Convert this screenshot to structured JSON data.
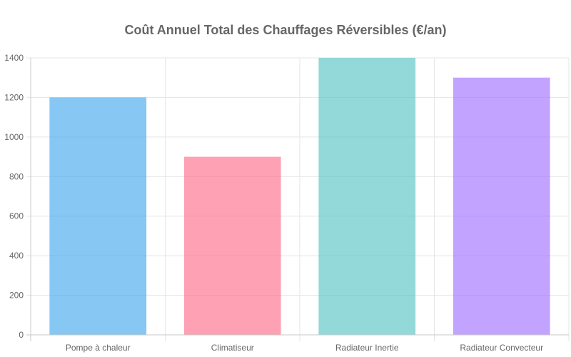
{
  "chart_data": {
    "type": "bar",
    "title": "Coût Annuel Total des Chauffages Réversibles (€/an)",
    "xlabel": "",
    "ylabel": "",
    "categories": [
      "Pompe à chaleur",
      "Climatiseur",
      "Radiateur Inertie",
      "Radiateur Convecteur"
    ],
    "values": [
      1200,
      900,
      1400,
      1300
    ],
    "colors": [
      "#36a2eb",
      "#ff6384",
      "#4bc0c0",
      "#9966ff"
    ],
    "bar_opacity": 0.6,
    "ylim": [
      0,
      1400
    ],
    "yticks": [
      0,
      200,
      400,
      600,
      800,
      1000,
      1200,
      1400
    ],
    "grid": true,
    "legend": "none"
  }
}
